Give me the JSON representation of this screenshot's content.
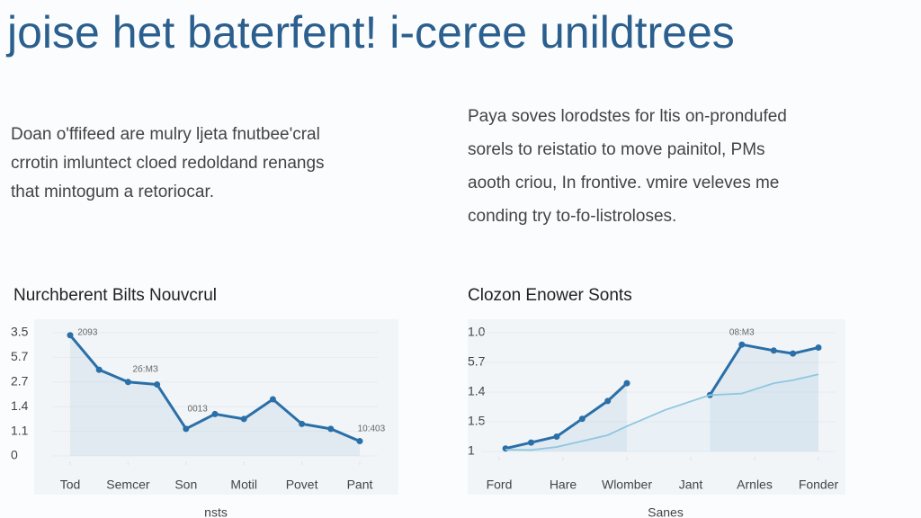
{
  "header": {
    "title": "joise het baterfent! i-ceree unildtrees"
  },
  "paragraphs": [
    {
      "lines": [
        "Doan o'ffifeed are mulry ljeta fnutbee'cral",
        "crrotin imluntect cloed redoldand renangs",
        "that mintogum a retoriocar."
      ]
    },
    {
      "lines": [
        "Paya soves lorodstes for ltis on-prondufed",
        "sorels to reistatio to move painitol, PMs",
        "aooth criou, In frontive. vmire veleves me",
        "conding try to-fo-listroloses."
      ]
    }
  ],
  "chart_data": [
    {
      "type": "line",
      "title": "Nurchberent Bilts Nouvcrul",
      "x_label": "nsts",
      "x": [
        0,
        0.5,
        1,
        1.5,
        2,
        2.5,
        3,
        3.5,
        4,
        4.5,
        5
      ],
      "series": [
        {
          "color": "#2a6fa8",
          "values": [
            4.9,
            3.5,
            3.0,
            2.9,
            1.1,
            1.7,
            1.5,
            2.3,
            1.3,
            1.1,
            0.6
          ]
        }
      ],
      "xlim": [
        0,
        5
      ],
      "xticks": [
        {
          "value": 0,
          "label": "Tod"
        },
        {
          "value": 1,
          "label": "Semcer"
        },
        {
          "value": 2,
          "label": "Son"
        },
        {
          "value": 3,
          "label": "Motil"
        },
        {
          "value": 4,
          "label": "Povet"
        },
        {
          "value": 5,
          "label": "Pant"
        }
      ],
      "ylim": [
        0,
        5
      ],
      "yticks": [
        {
          "value": 5,
          "label": "3.5"
        },
        {
          "value": 4,
          "label": "5.7"
        },
        {
          "value": 3,
          "label": "2.7"
        },
        {
          "value": 2,
          "label": "1.4"
        },
        {
          "value": 1,
          "label": "1.1"
        },
        0
      ],
      "annotations": [
        {
          "text": "2093",
          "x": 0.3,
          "y": 5.0
        },
        {
          "text": "2б:МЗ",
          "x": 1.3,
          "y": 3.5
        },
        {
          "text": "0013",
          "x": 2.2,
          "y": 1.9
        },
        {
          "text": "10:403",
          "x": 5.2,
          "y": 1.1
        }
      ]
    },
    {
      "type": "line",
      "title": "Clozon Enower Sonts",
      "x_label": "Sanes",
      "x": [
        0.1,
        0.5,
        0.9,
        1.3,
        1.7,
        2.0,
        2.6,
        3.3,
        3.8,
        4.3,
        4.6,
        5.0
      ],
      "series": [
        {
          "color": "#2a6fa8",
          "values": [
            0.1,
            0.3,
            0.5,
            1.1,
            1.7,
            2.3,
            null,
            1.9,
            3.6,
            3.4,
            3.3,
            3.5
          ]
        },
        {
          "color": "#8fc7e0",
          "values": [
            0.06,
            0.05,
            0.15,
            0.35,
            0.55,
            0.85,
            1.4,
            1.9,
            1.95,
            2.3,
            2.4,
            2.6
          ]
        }
      ],
      "xlim": [
        0,
        5
      ],
      "xticks": [
        {
          "value": 0,
          "label": "Ford"
        },
        {
          "value": 1,
          "label": "Hare"
        },
        {
          "value": 2,
          "label": "Wlomber"
        },
        {
          "value": 3,
          "label": "Jant"
        },
        {
          "value": 4,
          "label": "Arnles"
        },
        {
          "value": 5,
          "label": "Fonder"
        }
      ],
      "ylim": [
        0,
        4
      ],
      "yticks": [
        {
          "value": 4,
          "label": "1.0"
        },
        {
          "value": 3,
          "label": "5.7"
        },
        {
          "value": 2,
          "label": "1.4"
        },
        {
          "value": 1,
          "label": "1.5"
        },
        {
          "value": 0,
          "label": "1"
        }
      ],
      "annotations": [
        {
          "text": "08:М3",
          "x": 3.8,
          "y": 4.0
        }
      ]
    }
  ]
}
